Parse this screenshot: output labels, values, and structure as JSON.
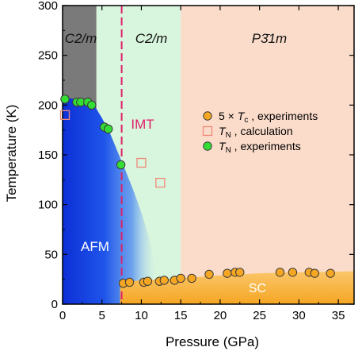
{
  "chart_data": {
    "type": "scatter",
    "xlabel": "Pressure (GPa)",
    "ylabel": "Temperature (K)",
    "xlim": [
      0,
      37
    ],
    "ylim": [
      0,
      300
    ],
    "xticks": [
      "0",
      "5",
      "10",
      "15",
      "20",
      "25",
      "30",
      "35"
    ],
    "yticks": [
      "0",
      "50",
      "100",
      "150",
      "200",
      "250",
      "300"
    ],
    "grid": false,
    "legend_placement": "right",
    "regions": [
      {
        "label": "C2/m",
        "x_range": [
          0,
          4.3
        ],
        "color": "#7a7a7a"
      },
      {
        "label": "C2/m",
        "x_range": [
          4.3,
          15
        ],
        "color": "#d8f5dd"
      },
      {
        "label": "P3̄1m",
        "x_range": [
          15,
          37
        ],
        "color": "#fbdcca"
      }
    ],
    "annotations": {
      "imt_label": "IMT",
      "imt_pressure": 7.5,
      "afm_label": "AFM",
      "sc_label": "SC"
    },
    "series": [
      {
        "name": "5 × Tc , experiments",
        "legend_main": "5 × ",
        "legend_symbol": "T",
        "legend_sub": "c",
        "legend_rest": " , experiments",
        "marker": "circle",
        "color": "#f5a623",
        "points": [
          [
            7.7,
            21
          ],
          [
            8.5,
            22
          ],
          [
            10.3,
            22
          ],
          [
            10.8,
            23
          ],
          [
            12.3,
            23
          ],
          [
            12.9,
            24
          ],
          [
            14.2,
            24
          ],
          [
            15.0,
            26
          ],
          [
            16.4,
            26
          ],
          [
            18.6,
            30
          ],
          [
            20.9,
            31
          ],
          [
            21.9,
            32
          ],
          [
            22.5,
            32
          ],
          [
            27.6,
            32
          ],
          [
            29.2,
            32
          ],
          [
            31.3,
            32
          ],
          [
            32.0,
            31
          ],
          [
            34.0,
            31
          ]
        ]
      },
      {
        "name": "TN , calculation",
        "legend_main": "",
        "legend_symbol": "T",
        "legend_sub": "N",
        "legend_rest": " , calculation",
        "marker": "square-open",
        "color": "#f08878",
        "points": [
          [
            0.3,
            190
          ],
          [
            10.0,
            142
          ],
          [
            12.4,
            122
          ]
        ]
      },
      {
        "name": "TN , experiments",
        "legend_main": "",
        "legend_symbol": "T",
        "legend_sub": "N",
        "legend_rest": " , experiments",
        "marker": "circle",
        "color": "#33dd33",
        "points": [
          [
            0.3,
            206
          ],
          [
            1.8,
            203
          ],
          [
            2.3,
            203
          ],
          [
            3.2,
            203
          ],
          [
            3.7,
            200
          ],
          [
            5.3,
            178
          ],
          [
            5.8,
            176
          ],
          [
            7.4,
            140
          ]
        ]
      }
    ]
  }
}
